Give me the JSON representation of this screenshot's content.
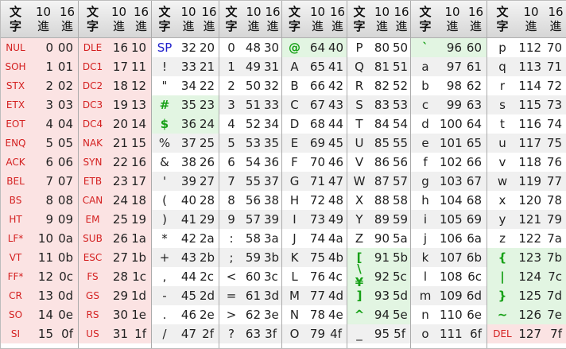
{
  "table": {
    "header": {
      "char_label": "文\n字",
      "dec_label": "10\n進",
      "hex_label": "16\n進"
    },
    "sections": [
      {
        "rows": [
          {
            "ch": "NUL",
            "dec": "0",
            "hex": "00",
            "style": "ctl"
          },
          {
            "ch": "SOH",
            "dec": "1",
            "hex": "01",
            "style": "ctl"
          },
          {
            "ch": "STX",
            "dec": "2",
            "hex": "02",
            "style": "ctl"
          },
          {
            "ch": "ETX",
            "dec": "3",
            "hex": "03",
            "style": "ctl"
          },
          {
            "ch": "EOT",
            "dec": "4",
            "hex": "04",
            "style": "ctl"
          },
          {
            "ch": "ENQ",
            "dec": "5",
            "hex": "05",
            "style": "ctl"
          },
          {
            "ch": "ACK",
            "dec": "6",
            "hex": "06",
            "style": "ctl"
          },
          {
            "ch": "BEL",
            "dec": "7",
            "hex": "07",
            "style": "ctl"
          },
          {
            "ch": "BS",
            "dec": "8",
            "hex": "08",
            "style": "ctl"
          },
          {
            "ch": "HT",
            "dec": "9",
            "hex": "09",
            "style": "ctl"
          },
          {
            "ch": "LF*",
            "dec": "10",
            "hex": "0a",
            "style": "ctl"
          },
          {
            "ch": "VT",
            "dec": "11",
            "hex": "0b",
            "style": "ctl"
          },
          {
            "ch": "FF*",
            "dec": "12",
            "hex": "0c",
            "style": "ctl"
          },
          {
            "ch": "CR",
            "dec": "13",
            "hex": "0d",
            "style": "ctl"
          },
          {
            "ch": "SO",
            "dec": "14",
            "hex": "0e",
            "style": "ctl"
          },
          {
            "ch": "SI",
            "dec": "15",
            "hex": "0f",
            "style": "ctl"
          }
        ]
      },
      {
        "rows": [
          {
            "ch": "DLE",
            "dec": "16",
            "hex": "10",
            "style": "ctl"
          },
          {
            "ch": "DC1",
            "dec": "17",
            "hex": "11",
            "style": "ctl"
          },
          {
            "ch": "DC2",
            "dec": "18",
            "hex": "12",
            "style": "ctl"
          },
          {
            "ch": "DC3",
            "dec": "19",
            "hex": "13",
            "style": "ctl"
          },
          {
            "ch": "DC4",
            "dec": "20",
            "hex": "14",
            "style": "ctl"
          },
          {
            "ch": "NAK",
            "dec": "21",
            "hex": "15",
            "style": "ctl"
          },
          {
            "ch": "SYN",
            "dec": "22",
            "hex": "16",
            "style": "ctl"
          },
          {
            "ch": "ETB",
            "dec": "23",
            "hex": "17",
            "style": "ctl"
          },
          {
            "ch": "CAN",
            "dec": "24",
            "hex": "18",
            "style": "ctl"
          },
          {
            "ch": "EM",
            "dec": "25",
            "hex": "19",
            "style": "ctl"
          },
          {
            "ch": "SUB",
            "dec": "26",
            "hex": "1a",
            "style": "ctl"
          },
          {
            "ch": "ESC",
            "dec": "27",
            "hex": "1b",
            "style": "ctl"
          },
          {
            "ch": "FS",
            "dec": "28",
            "hex": "1c",
            "style": "ctl"
          },
          {
            "ch": "GS",
            "dec": "29",
            "hex": "1d",
            "style": "ctl"
          },
          {
            "ch": "RS",
            "dec": "30",
            "hex": "1e",
            "style": "ctl"
          },
          {
            "ch": "US",
            "dec": "31",
            "hex": "1f",
            "style": "ctl"
          }
        ]
      },
      {
        "rows": [
          {
            "ch": "SP",
            "dec": "32",
            "hex": "20",
            "style": "blue"
          },
          {
            "ch": "!",
            "dec": "33",
            "hex": "21"
          },
          {
            "ch": "\"",
            "dec": "34",
            "hex": "22"
          },
          {
            "ch": "#",
            "dec": "35",
            "hex": "23",
            "style": "green"
          },
          {
            "ch": "$",
            "dec": "36",
            "hex": "24",
            "style": "green"
          },
          {
            "ch": "%",
            "dec": "37",
            "hex": "25"
          },
          {
            "ch": "&",
            "dec": "38",
            "hex": "26"
          },
          {
            "ch": "'",
            "dec": "39",
            "hex": "27"
          },
          {
            "ch": "(",
            "dec": "40",
            "hex": "28"
          },
          {
            "ch": ")",
            "dec": "41",
            "hex": "29"
          },
          {
            "ch": "*",
            "dec": "42",
            "hex": "2a"
          },
          {
            "ch": "+",
            "dec": "43",
            "hex": "2b"
          },
          {
            "ch": ",",
            "dec": "44",
            "hex": "2c"
          },
          {
            "ch": "-",
            "dec": "45",
            "hex": "2d"
          },
          {
            "ch": ".",
            "dec": "46",
            "hex": "2e"
          },
          {
            "ch": "/",
            "dec": "47",
            "hex": "2f"
          }
        ]
      },
      {
        "rows": [
          {
            "ch": "0",
            "dec": "48",
            "hex": "30"
          },
          {
            "ch": "1",
            "dec": "49",
            "hex": "31"
          },
          {
            "ch": "2",
            "dec": "50",
            "hex": "32"
          },
          {
            "ch": "3",
            "dec": "51",
            "hex": "33"
          },
          {
            "ch": "4",
            "dec": "52",
            "hex": "34"
          },
          {
            "ch": "5",
            "dec": "53",
            "hex": "35"
          },
          {
            "ch": "6",
            "dec": "54",
            "hex": "36"
          },
          {
            "ch": "7",
            "dec": "55",
            "hex": "37"
          },
          {
            "ch": "8",
            "dec": "56",
            "hex": "38"
          },
          {
            "ch": "9",
            "dec": "57",
            "hex": "39"
          },
          {
            "ch": ":",
            "dec": "58",
            "hex": "3a"
          },
          {
            "ch": ";",
            "dec": "59",
            "hex": "3b"
          },
          {
            "ch": "<",
            "dec": "60",
            "hex": "3c"
          },
          {
            "ch": "=",
            "dec": "61",
            "hex": "3d"
          },
          {
            "ch": ">",
            "dec": "62",
            "hex": "3e"
          },
          {
            "ch": "?",
            "dec": "63",
            "hex": "3f"
          }
        ]
      },
      {
        "rows": [
          {
            "ch": "@",
            "dec": "64",
            "hex": "40",
            "style": "green"
          },
          {
            "ch": "A",
            "dec": "65",
            "hex": "41"
          },
          {
            "ch": "B",
            "dec": "66",
            "hex": "42"
          },
          {
            "ch": "C",
            "dec": "67",
            "hex": "43"
          },
          {
            "ch": "D",
            "dec": "68",
            "hex": "44"
          },
          {
            "ch": "E",
            "dec": "69",
            "hex": "45"
          },
          {
            "ch": "F",
            "dec": "70",
            "hex": "46"
          },
          {
            "ch": "G",
            "dec": "71",
            "hex": "47"
          },
          {
            "ch": "H",
            "dec": "72",
            "hex": "48"
          },
          {
            "ch": "I",
            "dec": "73",
            "hex": "49"
          },
          {
            "ch": "J",
            "dec": "74",
            "hex": "4a"
          },
          {
            "ch": "K",
            "dec": "75",
            "hex": "4b"
          },
          {
            "ch": "L",
            "dec": "76",
            "hex": "4c"
          },
          {
            "ch": "M",
            "dec": "77",
            "hex": "4d"
          },
          {
            "ch": "N",
            "dec": "78",
            "hex": "4e"
          },
          {
            "ch": "O",
            "dec": "79",
            "hex": "4f"
          }
        ]
      },
      {
        "rows": [
          {
            "ch": "P",
            "dec": "80",
            "hex": "50"
          },
          {
            "ch": "Q",
            "dec": "81",
            "hex": "51"
          },
          {
            "ch": "R",
            "dec": "82",
            "hex": "52"
          },
          {
            "ch": "S",
            "dec": "83",
            "hex": "53"
          },
          {
            "ch": "T",
            "dec": "84",
            "hex": "54"
          },
          {
            "ch": "U",
            "dec": "85",
            "hex": "55"
          },
          {
            "ch": "V",
            "dec": "86",
            "hex": "56"
          },
          {
            "ch": "W",
            "dec": "87",
            "hex": "57"
          },
          {
            "ch": "X",
            "dec": "88",
            "hex": "58"
          },
          {
            "ch": "Y",
            "dec": "89",
            "hex": "59"
          },
          {
            "ch": "Z",
            "dec": "90",
            "hex": "5a"
          },
          {
            "ch": "[",
            "dec": "91",
            "hex": "5b",
            "style": "green"
          },
          {
            "ch": "\\\n¥",
            "dec": "92",
            "hex": "5c",
            "style": "green"
          },
          {
            "ch": "]",
            "dec": "93",
            "hex": "5d",
            "style": "green"
          },
          {
            "ch": "^",
            "dec": "94",
            "hex": "5e",
            "style": "green"
          },
          {
            "ch": "_",
            "dec": "95",
            "hex": "5f"
          }
        ]
      },
      {
        "rows": [
          {
            "ch": "`",
            "dec": "96",
            "hex": "60",
            "style": "green"
          },
          {
            "ch": "a",
            "dec": "97",
            "hex": "61"
          },
          {
            "ch": "b",
            "dec": "98",
            "hex": "62"
          },
          {
            "ch": "c",
            "dec": "99",
            "hex": "63"
          },
          {
            "ch": "d",
            "dec": "100",
            "hex": "64"
          },
          {
            "ch": "e",
            "dec": "101",
            "hex": "65"
          },
          {
            "ch": "f",
            "dec": "102",
            "hex": "66"
          },
          {
            "ch": "g",
            "dec": "103",
            "hex": "67"
          },
          {
            "ch": "h",
            "dec": "104",
            "hex": "68"
          },
          {
            "ch": "i",
            "dec": "105",
            "hex": "69"
          },
          {
            "ch": "j",
            "dec": "106",
            "hex": "6a"
          },
          {
            "ch": "k",
            "dec": "107",
            "hex": "6b"
          },
          {
            "ch": "l",
            "dec": "108",
            "hex": "6c"
          },
          {
            "ch": "m",
            "dec": "109",
            "hex": "6d"
          },
          {
            "ch": "n",
            "dec": "110",
            "hex": "6e"
          },
          {
            "ch": "o",
            "dec": "111",
            "hex": "6f"
          }
        ]
      },
      {
        "rows": [
          {
            "ch": "p",
            "dec": "112",
            "hex": "70"
          },
          {
            "ch": "q",
            "dec": "113",
            "hex": "71"
          },
          {
            "ch": "r",
            "dec": "114",
            "hex": "72"
          },
          {
            "ch": "s",
            "dec": "115",
            "hex": "73"
          },
          {
            "ch": "t",
            "dec": "116",
            "hex": "74"
          },
          {
            "ch": "u",
            "dec": "117",
            "hex": "75"
          },
          {
            "ch": "v",
            "dec": "118",
            "hex": "76"
          },
          {
            "ch": "w",
            "dec": "119",
            "hex": "77"
          },
          {
            "ch": "x",
            "dec": "120",
            "hex": "78"
          },
          {
            "ch": "y",
            "dec": "121",
            "hex": "79"
          },
          {
            "ch": "z",
            "dec": "122",
            "hex": "7a"
          },
          {
            "ch": "{",
            "dec": "123",
            "hex": "7b",
            "style": "green"
          },
          {
            "ch": "|",
            "dec": "124",
            "hex": "7c",
            "style": "green"
          },
          {
            "ch": "}",
            "dec": "125",
            "hex": "7d",
            "style": "green"
          },
          {
            "ch": "~",
            "dec": "126",
            "hex": "7e",
            "style": "green"
          },
          {
            "ch": "DEL",
            "dec": "127",
            "hex": "7f",
            "style": "ctl"
          }
        ]
      }
    ]
  },
  "colors": {
    "control_text": "#d42020",
    "control_bg": "#fbe3e3",
    "green_text": "#16a016",
    "green_bg": "#e2f5e2",
    "blue_text": "#2222cc",
    "zebra_bg": "#f0f0f0"
  }
}
